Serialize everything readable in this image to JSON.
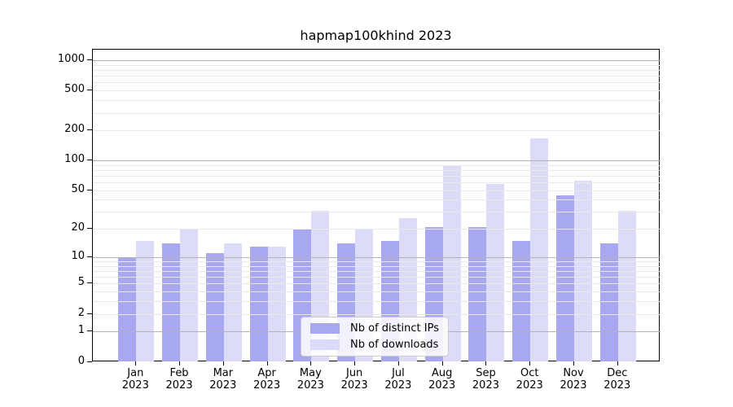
{
  "chart_data": {
    "type": "bar",
    "title": "hapmap100khind 2023",
    "categories": [
      "Jan 2023",
      "Feb 2023",
      "Mar 2023",
      "Apr 2023",
      "May 2023",
      "Jun 2023",
      "Jul 2023",
      "Aug 2023",
      "Sep 2023",
      "Oct 2023",
      "Nov 2023",
      "Dec 2023"
    ],
    "months": [
      "Jan",
      "Feb",
      "Mar",
      "Apr",
      "May",
      "Jun",
      "Jul",
      "Aug",
      "Sep",
      "Oct",
      "Nov",
      "Dec"
    ],
    "year": "2023",
    "series": [
      {
        "name": "Nb of distinct IPs",
        "color": "#a8a8f0",
        "values": [
          10,
          14,
          11,
          13,
          20,
          14,
          15,
          21,
          21,
          15,
          44,
          14
        ]
      },
      {
        "name": "Nb of downloads",
        "color": "#dcdcf8",
        "values": [
          15,
          20,
          14,
          13,
          31,
          20,
          26,
          90,
          58,
          165,
          62,
          31
        ]
      }
    ],
    "xlabel": "",
    "ylabel": "",
    "yscale": "log1p",
    "y_ticks": [
      0,
      1,
      2,
      5,
      10,
      20,
      50,
      100,
      200,
      500,
      1000
    ],
    "ylim": [
      0,
      1300
    ],
    "grid": "horizontal, minor light + major at powers of 10, drawn above bars",
    "legend_position": "lower center"
  },
  "colors": {
    "major_grid": "#b3b3b3",
    "minor_grid": "#e9e9e9",
    "axis": "#000000",
    "background": "#ffffff"
  }
}
